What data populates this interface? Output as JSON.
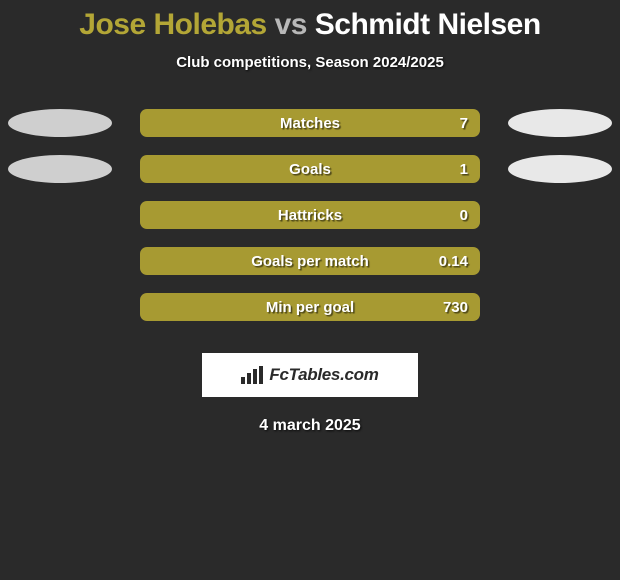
{
  "title": {
    "player1": "Jose Holebas",
    "vs": "vs",
    "player2": "Schmidt Nielsen",
    "player1_color": "#b3a636",
    "vs_color": "#b8b8b8",
    "player2_color": "#ffffff",
    "fontsize": 30
  },
  "subtitle": "Club competitions, Season 2024/2025",
  "background_color": "#2a2a2a",
  "stats": {
    "type": "bar",
    "bar_color": "#a79a32",
    "bar_radius": 7,
    "label_color": "#ffffff",
    "label_fontsize": 15,
    "oval_left_color": "#cfcfcf",
    "oval_right_color": "#e8e8e8",
    "rows": [
      {
        "label": "Matches",
        "value": "7",
        "show_ovals": true
      },
      {
        "label": "Goals",
        "value": "1",
        "show_ovals": true
      },
      {
        "label": "Hattricks",
        "value": "0",
        "show_ovals": false
      },
      {
        "label": "Goals per match",
        "value": "0.14",
        "show_ovals": false
      },
      {
        "label": "Min per goal",
        "value": "730",
        "show_ovals": false
      }
    ]
  },
  "logo": {
    "text": "FcTables.com",
    "background": "#ffffff",
    "text_color": "#2a2a2a"
  },
  "date": "4 march 2025"
}
